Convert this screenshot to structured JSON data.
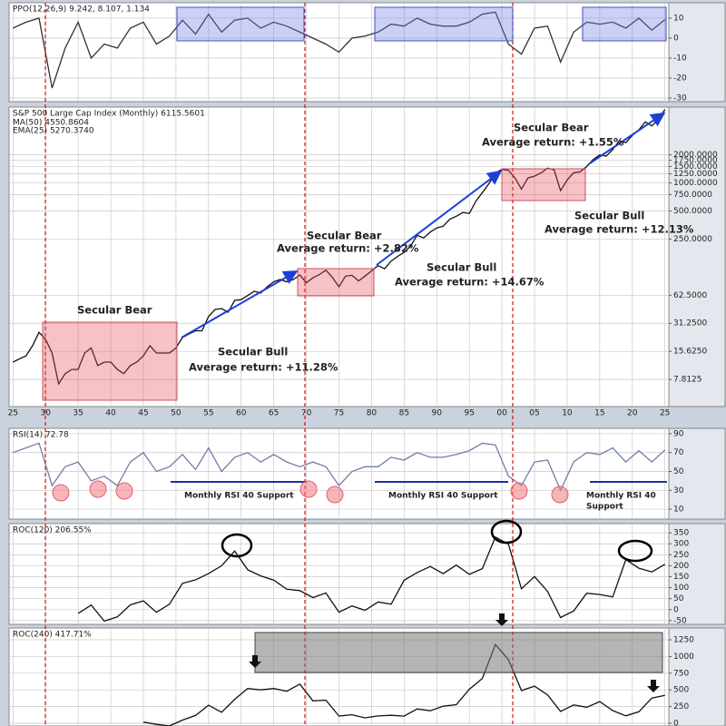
{
  "chart_data": [
    {
      "type": "line",
      "title": "PPO(12,26,9) 9.242, 8.107, 1.134",
      "color": "#333333",
      "x": [
        1925,
        1927,
        1929,
        1931,
        1933,
        1935,
        1937,
        1939,
        1941,
        1943,
        1945,
        1947,
        1949,
        1951,
        1953,
        1955,
        1957,
        1959,
        1961,
        1963,
        1965,
        1967,
        1969,
        1971,
        1973,
        1975,
        1977,
        1979,
        1981,
        1983,
        1985,
        1987,
        1989,
        1991,
        1993,
        1995,
        1997,
        1999,
        2001,
        2003,
        2005,
        2007,
        2009,
        2011,
        2013,
        2015,
        2017,
        2019,
        2021,
        2023,
        2025
      ],
      "values": [
        5,
        8,
        10,
        -25,
        -5,
        8,
        -10,
        -3,
        -5,
        5,
        8,
        -3,
        1,
        9,
        2,
        12,
        3,
        9,
        10,
        5,
        8,
        6,
        3,
        0,
        -3,
        -7,
        0,
        1,
        3,
        7,
        6,
        10,
        7,
        6,
        6,
        8,
        12,
        13,
        -3,
        -8,
        5,
        6,
        -12,
        3,
        8,
        7,
        8,
        5,
        10,
        4,
        9.242
      ],
      "xlim": [
        1924.4,
        2025.6
      ],
      "ylim": [
        -31.8,
        17.7
      ],
      "yticks": [
        -30,
        -20,
        -10,
        0,
        10
      ],
      "grid": true
    },
    {
      "type": "line",
      "title": "S&P 500 Large Cap Index (Monthly) 6115.5601",
      "overlays": [
        "MA(50) 4550.8604",
        "EMA(25) 5270.3740"
      ],
      "color": "#111111",
      "log": true,
      "x": [
        1925,
        1926,
        1927,
        1928,
        1929,
        1930,
        1931,
        1932,
        1933,
        1934,
        1935,
        1936,
        1937,
        1938,
        1939,
        1940,
        1941,
        1942,
        1943,
        1944,
        1945,
        1946,
        1947,
        1948,
        1949,
        1950,
        1951,
        1952,
        1953,
        1954,
        1955,
        1956,
        1957,
        1958,
        1959,
        1960,
        1961,
        1962,
        1963,
        1964,
        1965,
        1966,
        1967,
        1968,
        1969,
        1970,
        1971,
        1972,
        1973,
        1974,
        1975,
        1976,
        1977,
        1978,
        1979,
        1980,
        1981,
        1982,
        1983,
        1984,
        1985,
        1986,
        1987,
        1988,
        1989,
        1990,
        1991,
        1992,
        1993,
        1994,
        1995,
        1996,
        1997,
        1998,
        1999,
        2000,
        2001,
        2002,
        2003,
        2004,
        2005,
        2006,
        2007,
        2008,
        2009,
        2010,
        2011,
        2012,
        2013,
        2014,
        2015,
        2016,
        2017,
        2018,
        2019,
        2020,
        2021,
        2022,
        2023,
        2024,
        2025
      ],
      "values": [
        12,
        13,
        14,
        18,
        25,
        21,
        15,
        7,
        9,
        10,
        10,
        15,
        17,
        11,
        12,
        12,
        10,
        9,
        11,
        12,
        14,
        18,
        15,
        15,
        15,
        17,
        22,
        24,
        26,
        26,
        37,
        44,
        45,
        41,
        55,
        56,
        62,
        69,
        66,
        77,
        87,
        92,
        87,
        92,
        103,
        85,
        96,
        104,
        116,
        97,
        77,
        100,
        102,
        89,
        100,
        114,
        130,
        120,
        145,
        163,
        180,
        211,
        274,
        257,
        297,
        329,
        343,
        409,
        439,
        481,
        470,
        636,
        786,
        980,
        1280,
        1394,
        1366,
        1130,
        855,
        1131,
        1181,
        1280,
        1438,
        1378,
        825,
        1073,
        1286,
        1312,
        1498,
        1782,
        1995,
        1940,
        2279,
        2823,
        2704,
        3225,
        3714,
        4515,
        4076,
        4845,
        6115
      ],
      "xlim": [
        1924.4,
        2025.6
      ],
      "ylim": [
        4,
        6500
      ],
      "xticks": [
        {
          "value": 1925,
          "label": "25"
        },
        {
          "value": 1930,
          "label": "30"
        },
        {
          "value": 1935,
          "label": "35"
        },
        {
          "value": 1940,
          "label": "40"
        },
        {
          "value": 1945,
          "label": "45"
        },
        {
          "value": 1950,
          "label": "50"
        },
        {
          "value": 1955,
          "label": "55"
        },
        {
          "value": 1960,
          "label": "60"
        },
        {
          "value": 1965,
          "label": "65"
        },
        {
          "value": 1970,
          "label": "70"
        },
        {
          "value": 1975,
          "label": "75"
        },
        {
          "value": 1980,
          "label": "80"
        },
        {
          "value": 1985,
          "label": "85"
        },
        {
          "value": 1990,
          "label": "90"
        },
        {
          "value": 1995,
          "label": "95"
        },
        {
          "value": 2000,
          "label": "00"
        },
        {
          "value": 2005,
          "label": "05"
        },
        {
          "value": 2010,
          "label": "10"
        },
        {
          "value": 2015,
          "label": "15"
        },
        {
          "value": 2020,
          "label": "20"
        },
        {
          "value": 2025,
          "label": "25"
        }
      ],
      "yticks": [
        {
          "value": 7.8125,
          "label": "7.8125"
        },
        {
          "value": 15.625,
          "label": "15.6250"
        },
        {
          "value": 31.25,
          "label": "31.2500"
        },
        {
          "value": 62.5,
          "label": "62.5000"
        },
        {
          "value": 250,
          "label": "250.0000"
        },
        {
          "value": 500,
          "label": "500.0000"
        },
        {
          "value": 750,
          "label": "750.0000"
        },
        {
          "value": 1000,
          "label": "1000.0000"
        },
        {
          "value": 1250,
          "label": "1250.0000"
        },
        {
          "value": 1500,
          "label": "1500.0000"
        },
        {
          "value": 1750,
          "label": "1750.0000"
        },
        {
          "value": 2000,
          "label": "2000.0000"
        }
      ],
      "grid": true,
      "annotations": [
        {
          "text": "Secular Bear",
          "color": "#d9262b"
        },
        {
          "text": "Secular Bull",
          "color": "#1c2fa8"
        },
        {
          "text": "Average return:  +11.28%",
          "color": "#1c2fa8"
        },
        {
          "text": "Secular Bear",
          "color": "#d9262b"
        },
        {
          "text": "Average return:  +2.82%",
          "color": "#d9262b"
        },
        {
          "text": "Secular Bull",
          "color": "#1c2fa8"
        },
        {
          "text": "Average return:  +14.67%",
          "color": "#1c2fa8"
        },
        {
          "text": "Secular Bear",
          "color": "#d9262b"
        },
        {
          "text": "Average return:  +1.55%",
          "color": "#d9262b"
        },
        {
          "text": "Secular Bull",
          "color": "#1c2fa8"
        },
        {
          "text": "Average return:  +12.13%",
          "color": "#1c2fa8"
        }
      ]
    },
    {
      "type": "line",
      "title": "RSI(14) 72.78",
      "color": "#6f7fa6",
      "x": [
        1925,
        1927,
        1929,
        1931,
        1933,
        1935,
        1937,
        1939,
        1941,
        1943,
        1945,
        1947,
        1949,
        1951,
        1953,
        1955,
        1957,
        1959,
        1961,
        1963,
        1965,
        1967,
        1969,
        1971,
        1973,
        1975,
        1977,
        1979,
        1981,
        1983,
        1985,
        1987,
        1989,
        1991,
        1993,
        1995,
        1997,
        1999,
        2001,
        2003,
        2005,
        2007,
        2009,
        2011,
        2013,
        2015,
        2017,
        2019,
        2021,
        2023,
        2025
      ],
      "values": [
        70,
        75,
        80,
        35,
        55,
        60,
        40,
        45,
        35,
        60,
        70,
        50,
        55,
        68,
        52,
        75,
        50,
        65,
        70,
        60,
        68,
        60,
        55,
        60,
        55,
        35,
        50,
        55,
        55,
        65,
        62,
        70,
        65,
        65,
        68,
        72,
        80,
        78,
        45,
        35,
        60,
        62,
        30,
        60,
        70,
        68,
        75,
        60,
        72,
        60,
        72.78
      ],
      "xlim": [
        1924.4,
        2025.6
      ],
      "ylim": [
        -0.5,
        95.7
      ],
      "yticks": [
        10,
        30,
        50,
        70,
        90
      ],
      "grid": true,
      "annotations": [
        {
          "text": "Monthly RSI 40 Support",
          "color": "#1c2fa8"
        },
        {
          "text": "Monthly RSI 40 Support",
          "color": "#1c2fa8"
        },
        {
          "text": "Monthly RSI 40",
          "color": "#1c2fa8"
        },
        {
          "text": "Support",
          "color": "#1c2fa8"
        }
      ]
    },
    {
      "type": "line",
      "title": "ROC(120) 206.55%",
      "color": "#111111",
      "x": [
        1935,
        1937,
        1939,
        1941,
        1943,
        1945,
        1947,
        1949,
        1951,
        1953,
        1955,
        1957,
        1959,
        1961,
        1963,
        1965,
        1967,
        1969,
        1971,
        1973,
        1975,
        1977,
        1979,
        1981,
        1983,
        1985,
        1987,
        1989,
        1991,
        1993,
        1995,
        1997,
        1999,
        2001,
        2003,
        2005,
        2007,
        2009,
        2011,
        2013,
        2015,
        2017,
        2019,
        2021,
        2023,
        2025
      ],
      "values": [
        -17,
        21,
        -52,
        -33,
        22,
        40,
        -12,
        25,
        120,
        136,
        164,
        200,
        267,
        182,
        154,
        135,
        93,
        87,
        55,
        76,
        -11,
        17,
        -3,
        35,
        25,
        134,
        169,
        197,
        164,
        203,
        161,
        187,
        331,
        298,
        95,
        151,
        83,
        -36,
        -6,
        75,
        69,
        58,
        228,
        189,
        172,
        206.55
      ],
      "xlim": [
        1924.4,
        2025.6
      ],
      "ylim": [
        -67,
        392
      ],
      "yticks": [
        -50,
        0,
        50,
        100,
        150,
        200,
        250,
        300,
        350
      ],
      "grid": true
    },
    {
      "type": "line",
      "title": "ROC(240) 417.71%",
      "color": "#111111",
      "x": [
        1945,
        1947,
        1949,
        1951,
        1953,
        1955,
        1957,
        1959,
        1961,
        1963,
        1965,
        1967,
        1969,
        1971,
        1973,
        1975,
        1977,
        1979,
        1981,
        1983,
        1985,
        1987,
        1989,
        1991,
        1993,
        1995,
        1997,
        1999,
        2001,
        2003,
        2005,
        2007,
        2009,
        2011,
        2013,
        2015,
        2017,
        2019,
        2021,
        2023,
        2025
      ],
      "values": [
        17,
        -17,
        -40,
        47,
        117,
        270,
        165,
        358,
        520,
        500,
        521,
        480,
        587,
        336,
        346,
        108,
        127,
        82,
        110,
        120,
        107,
        215,
        188,
        257,
        278,
        510,
        671,
        1180,
        951,
        490,
        556,
        425,
        178,
        275,
        241,
        324,
        190,
        111,
        172,
        377,
        417.71
      ],
      "xlim": [
        1924.4,
        2025.6
      ],
      "ylim": [
        -41,
        1427
      ],
      "yticks": [
        0,
        250,
        500,
        750,
        1000,
        1250
      ],
      "grid": true
    }
  ]
}
